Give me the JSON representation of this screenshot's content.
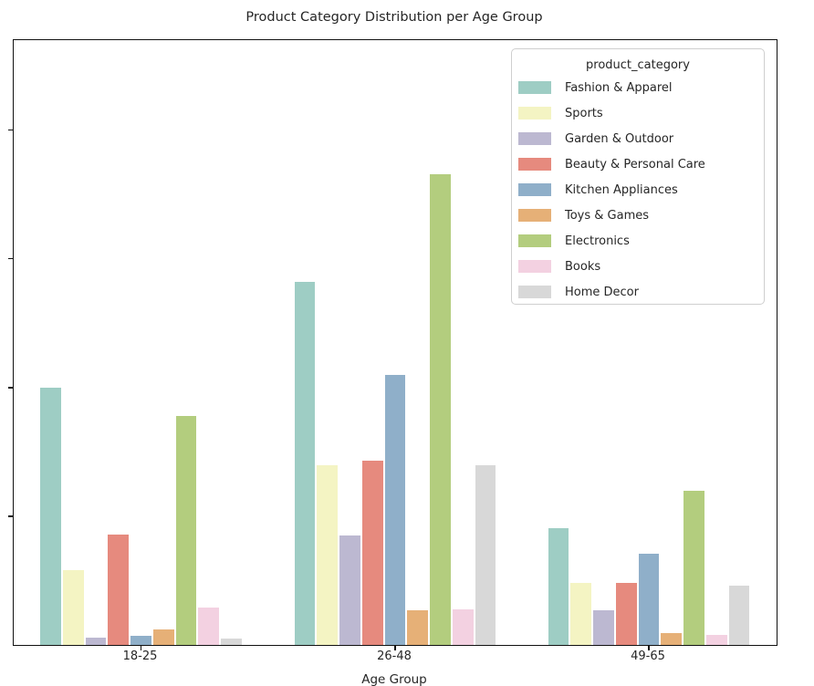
{
  "title": "Product Category Distribution per Age Group",
  "x_axis": {
    "label": "Age Group",
    "tick_labels": [
      "18-25",
      "26-48",
      "49-65"
    ]
  },
  "y_axis": {
    "tick_labels": [],
    "ticks_visible": true
  },
  "legend": {
    "title": "product_category",
    "entries": [
      {
        "label": "Fashion & Apparel",
        "color": "#9ecdc4"
      },
      {
        "label": "Sports",
        "color": "#f4f4c3"
      },
      {
        "label": "Garden & Outdoor",
        "color": "#bcb8d1"
      },
      {
        "label": "Beauty & Personal Care",
        "color": "#e68a7e"
      },
      {
        "label": "Kitchen Appliances",
        "color": "#8fafc9"
      },
      {
        "label": "Toys & Games",
        "color": "#e6b077"
      },
      {
        "label": "Electronics",
        "color": "#b3cd7e"
      },
      {
        "label": "Books",
        "color": "#f3d1e1"
      },
      {
        "label": "Home Decor",
        "color": "#d8d8d8"
      }
    ]
  },
  "chart_data": {
    "type": "bar",
    "title": "Product Category Distribution per Age Group",
    "xlabel": "Age Group",
    "ylabel": "",
    "categories": [
      "18-25",
      "26-48",
      "49-65"
    ],
    "series": [
      {
        "name": "Fashion & Apparel",
        "color": "#9ecdc4",
        "values": [
          2.0,
          2.82,
          0.91
        ]
      },
      {
        "name": "Sports",
        "color": "#f4f4c3",
        "values": [
          0.58,
          1.4,
          0.48
        ]
      },
      {
        "name": "Garden & Outdoor",
        "color": "#bcb8d1",
        "values": [
          0.06,
          0.85,
          0.27
        ]
      },
      {
        "name": "Beauty & Personal Care",
        "color": "#e68a7e",
        "values": [
          0.86,
          1.43,
          0.48
        ]
      },
      {
        "name": "Kitchen Appliances",
        "color": "#8fafc9",
        "values": [
          0.07,
          2.1,
          0.71
        ]
      },
      {
        "name": "Toys & Games",
        "color": "#e6b077",
        "values": [
          0.12,
          0.27,
          0.09
        ]
      },
      {
        "name": "Electronics",
        "color": "#b3cd7e",
        "values": [
          1.78,
          3.66,
          1.2
        ]
      },
      {
        "name": "Books",
        "color": "#f3d1e1",
        "values": [
          0.29,
          0.28,
          0.08
        ]
      },
      {
        "name": "Home Decor",
        "color": "#d8d8d8",
        "values": [
          0.05,
          1.4,
          0.46
        ]
      }
    ],
    "ylim": [
      0,
      4.7
    ],
    "y_ticks": [
      1,
      2,
      3,
      4
    ],
    "y_tick_labels_visible": false,
    "grid": false,
    "legend_position": "upper right"
  }
}
